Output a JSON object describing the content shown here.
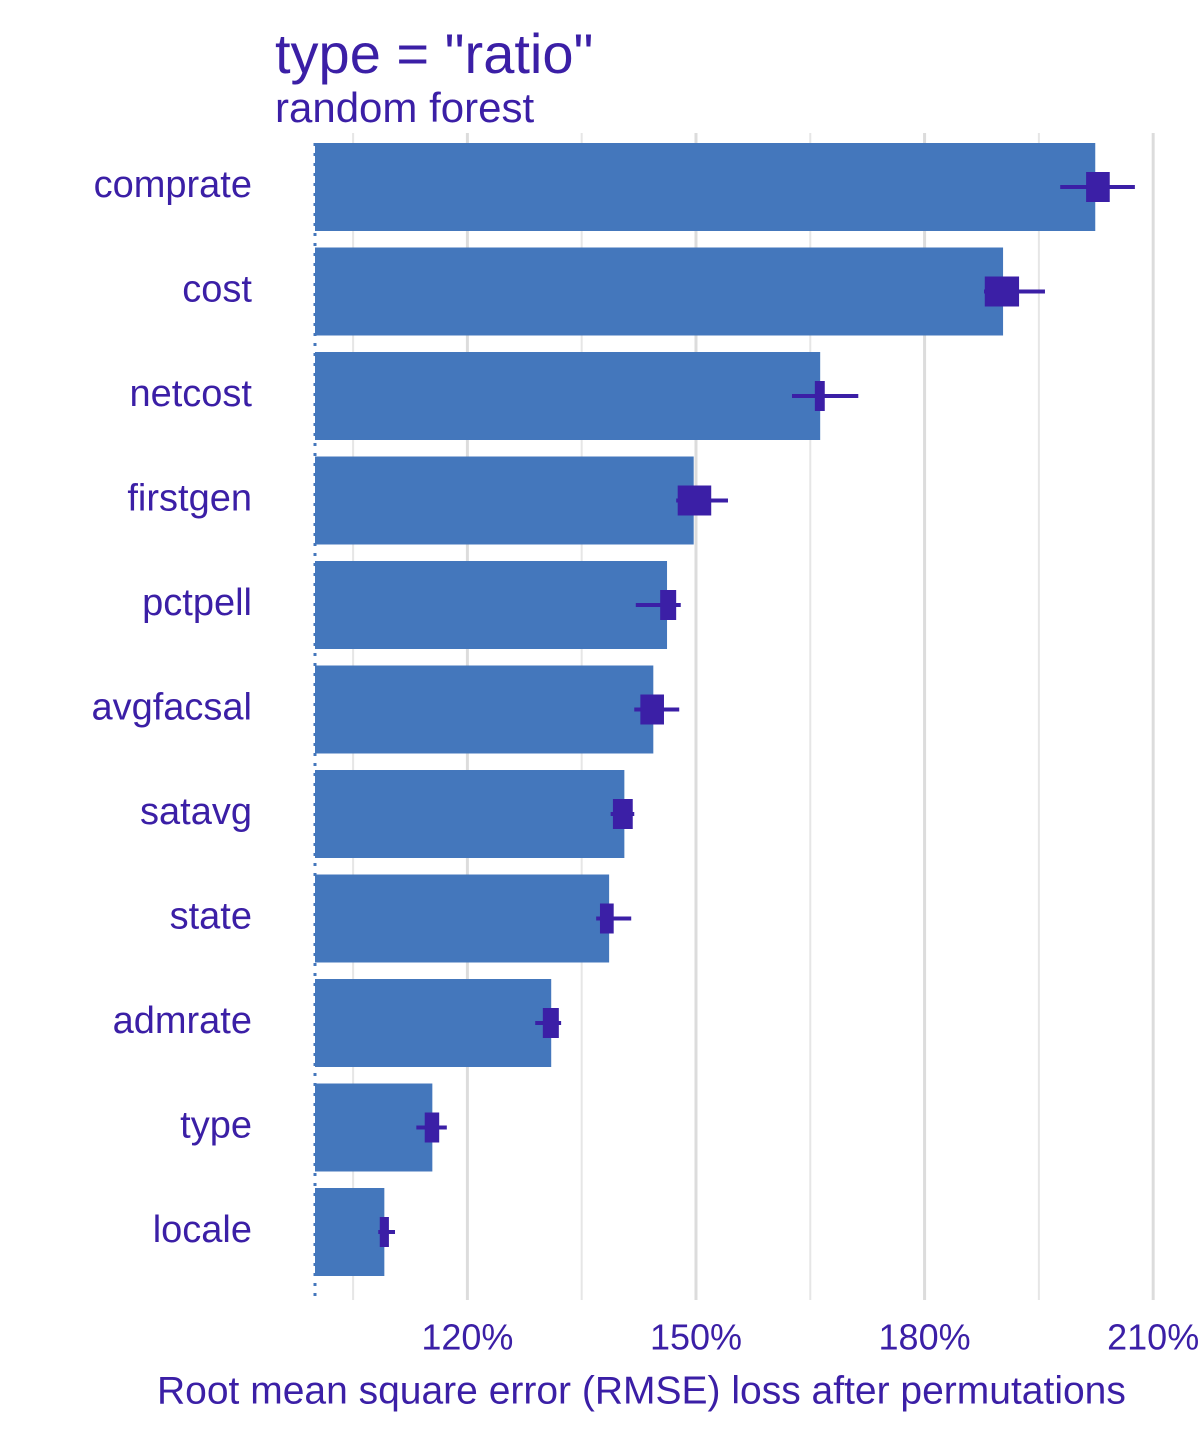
{
  "chart_data": {
    "type": "bar",
    "orientation": "horizontal",
    "title": "type = \"ratio\"",
    "subtitle": "random forest",
    "x_label": "Root mean square error (RMSE) loss after permutations",
    "categories": [
      "comprate",
      "cost",
      "netcost",
      "firstgen",
      "pctpell",
      "avgfacsal",
      "satavg",
      "state",
      "admrate",
      "type",
      "locale"
    ],
    "values": [
      202.4,
      190.3,
      166.3,
      149.7,
      146.2,
      144.4,
      140.6,
      138.6,
      131.0,
      115.4,
      109.1
    ],
    "low": [
      197.8,
      187.8,
      162.6,
      147.4,
      142.1,
      141.9,
      138.8,
      136.9,
      128.9,
      113.3,
      108.3
    ],
    "high": [
      207.6,
      195.8,
      171.3,
      154.2,
      148.0,
      147.8,
      141.9,
      141.5,
      132.3,
      117.3,
      110.5
    ],
    "box_low": [
      201.2,
      187.9,
      165.6,
      147.6,
      145.3,
      142.7,
      139.1,
      137.4,
      129.9,
      114.4,
      108.5
    ],
    "box_high": [
      204.3,
      192.4,
      166.9,
      152.0,
      147.4,
      145.8,
      141.7,
      139.2,
      132.0,
      116.3,
      109.7
    ],
    "color": "#4477bc",
    "interval_color": "#3b1fa6",
    "baseline": 100,
    "xlim": [
      100,
      211.5
    ],
    "xticks": [
      {
        "value": 120,
        "label": "120%"
      },
      {
        "value": 150,
        "label": "150%"
      },
      {
        "value": 180,
        "label": "180%"
      },
      {
        "value": 210,
        "label": "210%"
      }
    ],
    "minor_xticks": [
      105,
      135,
      165,
      195
    ],
    "grid": true
  }
}
